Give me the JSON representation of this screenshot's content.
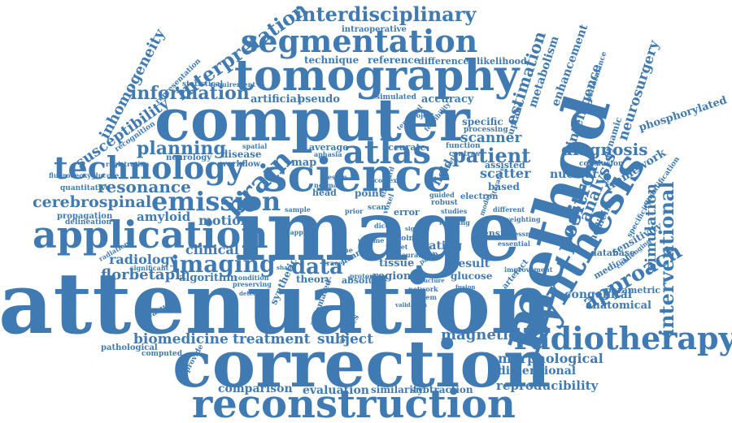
{
  "color": "#3f7ab3",
  "words": [
    {
      "name": "attenuation",
      "text": "attenuation"
    },
    {
      "name": "image",
      "text": "image"
    },
    {
      "name": "correction",
      "text": "correction"
    },
    {
      "name": "computer",
      "text": "computer"
    },
    {
      "name": "method",
      "text": "method"
    },
    {
      "name": "tomography",
      "text": "tomography"
    },
    {
      "name": "science",
      "text": "science"
    },
    {
      "name": "reconstruction",
      "text": "reconstruction"
    },
    {
      "name": "synthesis",
      "text": "synthesis"
    },
    {
      "name": "application",
      "text": "application"
    },
    {
      "name": "segmentation",
      "text": "segmentation"
    },
    {
      "name": "radiotherapy",
      "text": "radiotherapy"
    },
    {
      "name": "atlas",
      "text": "atlas"
    },
    {
      "name": "technology",
      "text": "technology"
    },
    {
      "name": "brain",
      "text": "brain"
    },
    {
      "name": "emission",
      "text": "emission"
    },
    {
      "name": "positron",
      "text": "positron"
    },
    {
      "name": "interdisciplinary",
      "text": "interdisciplinary"
    },
    {
      "name": "imaging",
      "text": "imaging"
    },
    {
      "name": "approach",
      "text": "approach"
    },
    {
      "name": "interventional",
      "text": "interventional"
    },
    {
      "name": "data",
      "text": "data"
    },
    {
      "name": "patient",
      "text": "patient"
    },
    {
      "name": "information",
      "text": "information"
    },
    {
      "name": "interpretation",
      "text": "interpretation"
    },
    {
      "name": "planning",
      "text": "planning"
    },
    {
      "name": "diagnosis",
      "text": "diagnosis"
    },
    {
      "name": "inhomogeneity",
      "text": "inhomogeneity"
    },
    {
      "name": "susceptibility",
      "text": "susceptibility"
    },
    {
      "name": "resonance",
      "text": "resonance"
    },
    {
      "name": "cerebrospinal",
      "text": "cerebrospinal"
    },
    {
      "name": "estimation",
      "text": "estimation"
    },
    {
      "name": "analysis",
      "text": "analysis"
    },
    {
      "name": "neurosurgery",
      "text": "neurosurgery"
    },
    {
      "name": "intelligence",
      "text": "intelligence"
    },
    {
      "name": "simulation",
      "text": "simulation"
    },
    {
      "name": "magnetic",
      "text": "magnetic"
    },
    {
      "name": "morphological",
      "text": "morphological"
    },
    {
      "name": "reproducibility",
      "text": "reproducibility"
    },
    {
      "name": "biomedicine",
      "text": "biomedicine"
    },
    {
      "name": "treatment",
      "text": "treatment"
    },
    {
      "name": "subject",
      "text": "subject"
    },
    {
      "name": "evaluation",
      "text": "evaluation"
    },
    {
      "name": "comparison",
      "text": "comparison"
    },
    {
      "name": "similarity",
      "text": "similarity"
    },
    {
      "name": "subtraction",
      "text": "subtraction"
    },
    {
      "name": "florbetapir",
      "text": "florbetapir"
    },
    {
      "name": "radiology",
      "text": "radiology"
    },
    {
      "name": "motion",
      "text": "motion"
    },
    {
      "name": "clinical",
      "text": "clinical"
    },
    {
      "name": "amyloid",
      "text": "amyloid"
    },
    {
      "name": "algorithm",
      "text": "algorithm"
    },
    {
      "name": "congenital",
      "text": "congenital"
    },
    {
      "name": "anatomical",
      "text": "anatomical"
    },
    {
      "name": "dimensional",
      "text": "dimensional"
    },
    {
      "name": "scanner",
      "text": "scanner"
    },
    {
      "name": "scatter",
      "text": "scatter"
    },
    {
      "name": "nuclear",
      "text": "nuclear"
    },
    {
      "name": "framework",
      "text": "framework"
    },
    {
      "name": "phosphorylated",
      "text": "phosphorylated"
    },
    {
      "name": "metabolism",
      "text": "metabolism"
    },
    {
      "name": "enhancement",
      "text": "enhancement"
    },
    {
      "name": "technique",
      "text": "technique"
    },
    {
      "name": "reference",
      "text": "reference"
    },
    {
      "name": "difference",
      "text": "difference"
    },
    {
      "name": "likelihood",
      "text": "likelihood"
    },
    {
      "name": "artificial",
      "text": "artificial"
    },
    {
      "name": "pseudo",
      "text": "pseudo"
    },
    {
      "name": "accuracy",
      "text": "accuracy"
    },
    {
      "name": "specific",
      "text": "specific"
    },
    {
      "name": "uptake",
      "text": "uptake"
    },
    {
      "name": "field",
      "text": "field"
    },
    {
      "name": "map",
      "text": "map"
    },
    {
      "name": "disease",
      "text": "disease"
    },
    {
      "name": "workflow",
      "text": "workflow"
    },
    {
      "name": "average",
      "text": "average"
    },
    {
      "name": "accurate",
      "text": "accurate"
    },
    {
      "name": "assisted",
      "text": "assisted"
    },
    {
      "name": "based",
      "text": "based"
    },
    {
      "name": "tissue",
      "text": "tissue"
    },
    {
      "name": "region",
      "text": "region"
    },
    {
      "name": "result",
      "text": "result"
    },
    {
      "name": "glucose",
      "text": "glucose"
    },
    {
      "name": "theory",
      "text": "theory"
    },
    {
      "name": "rating",
      "text": "rating"
    },
    {
      "name": "point",
      "text": "point"
    },
    {
      "name": "density",
      "text": "density"
    },
    {
      "name": "error",
      "text": "error"
    },
    {
      "name": "absolute",
      "text": "absolute"
    },
    {
      "name": "sensitivity",
      "text": "sensitivity"
    },
    {
      "name": "medical",
      "text": "medical"
    },
    {
      "name": "database",
      "text": "database"
    },
    {
      "name": "parametric",
      "text": "parametric"
    },
    {
      "name": "medicine",
      "text": "medicine"
    },
    {
      "name": "dynamic",
      "text": "dynamic"
    },
    {
      "name": "statistical",
      "text": "statistical"
    },
    {
      "name": "neurology",
      "text": "neurology"
    },
    {
      "name": "quantitative",
      "text": "quantitative"
    },
    {
      "name": "recognition",
      "text": "recognition"
    },
    {
      "name": "propagation",
      "text": "propagation"
    },
    {
      "name": "delineation",
      "text": "delineation"
    },
    {
      "name": "pathological",
      "text": "pathological"
    },
    {
      "name": "measure",
      "text": "measure"
    },
    {
      "name": "computed",
      "text": "computed"
    },
    {
      "name": "provide",
      "text": "provide"
    },
    {
      "name": "automated",
      "text": "automated"
    },
    {
      "name": "synthetic",
      "text": "synthetic"
    },
    {
      "name": "atlases",
      "text": "atlases"
    },
    {
      "name": "electron",
      "text": "electron"
    },
    {
      "name": "contrast",
      "text": "contrast"
    },
    {
      "name": "function",
      "text": "function"
    },
    {
      "name": "processing",
      "text": "processing"
    },
    {
      "name": "conclusion",
      "text": "conclusion"
    },
    {
      "name": "quantification",
      "text": "quantification"
    },
    {
      "name": "specificity",
      "text": "specificity"
    },
    {
      "name": "performance",
      "text": "performance"
    },
    {
      "name": "intraoperative",
      "text": "intraoperative"
    },
    {
      "name": "representation",
      "text": "representation"
    },
    {
      "name": "registration",
      "text": "registration"
    },
    {
      "name": "fluorodeoxyglucose",
      "text": "fluorodeoxyglucose"
    },
    {
      "name": "radiation",
      "text": "radiation"
    },
    {
      "name": "significant",
      "text": "significant"
    },
    {
      "name": "head",
      "text": "head"
    },
    {
      "name": "aphasia",
      "text": "aphasia"
    },
    {
      "name": "simulated",
      "text": "simulated"
    },
    {
      "name": "requirement",
      "text": "requirement"
    },
    {
      "name": "robust",
      "text": "robust"
    },
    {
      "name": "guided",
      "text": "guided"
    },
    {
      "name": "artefact",
      "text": "artefact"
    },
    {
      "name": "improvement",
      "text": "improvement"
    },
    {
      "name": "challenging",
      "text": "challenging"
    },
    {
      "name": "model",
      "text": "model"
    },
    {
      "name": "different",
      "text": "different"
    },
    {
      "name": "heart",
      "text": "heart"
    },
    {
      "name": "tracer",
      "text": "tracer"
    },
    {
      "name": "target",
      "text": "target"
    },
    {
      "name": "iterative",
      "text": "iterative"
    },
    {
      "name": "condition",
      "text": "condition"
    },
    {
      "name": "preserving",
      "text": "preserving"
    },
    {
      "name": "proton",
      "text": "proton"
    },
    {
      "name": "joint",
      "text": "joint"
    },
    {
      "name": "patch",
      "text": "patch"
    },
    {
      "name": "learning",
      "text": "learning"
    },
    {
      "name": "studies",
      "text": "studies"
    },
    {
      "name": "normal",
      "text": "normal"
    },
    {
      "name": "sample",
      "text": "sample"
    },
    {
      "name": "scan",
      "text": "scan"
    },
    {
      "name": "voxel",
      "text": "voxel"
    },
    {
      "name": "feasibility",
      "text": "feasibility"
    },
    {
      "name": "standard",
      "text": "standard"
    },
    {
      "name": "kinetic",
      "text": "kinetic"
    },
    {
      "name": "lesion",
      "text": "lesion"
    },
    {
      "name": "bone",
      "text": "bone"
    },
    {
      "name": "work",
      "text": "work"
    },
    {
      "name": "neural",
      "text": "neural"
    },
    {
      "name": "cortex",
      "text": "cortex"
    },
    {
      "name": "spatial",
      "text": "spatial"
    },
    {
      "name": "temporal",
      "text": "temporal"
    },
    {
      "name": "project",
      "text": "project"
    },
    {
      "name": "essential",
      "text": "essential"
    },
    {
      "name": "assessment",
      "text": "assessment"
    },
    {
      "name": "volume",
      "text": "volume"
    },
    {
      "name": "mapping",
      "text": "mapping"
    },
    {
      "name": "weighting",
      "text": "weighting"
    },
    {
      "name": "network",
      "text": "network"
    },
    {
      "name": "dice",
      "text": "dice"
    },
    {
      "name": "system",
      "text": "system"
    },
    {
      "name": "validation",
      "text": "validation"
    },
    {
      "name": "structure",
      "text": "structure"
    },
    {
      "name": "prior",
      "text": "prior"
    },
    {
      "name": "fusion",
      "text": "fusion"
    },
    {
      "name": "detection",
      "text": "detection"
    },
    {
      "name": "shape",
      "text": "shape"
    },
    {
      "name": "signal",
      "text": "signal"
    }
  ]
}
